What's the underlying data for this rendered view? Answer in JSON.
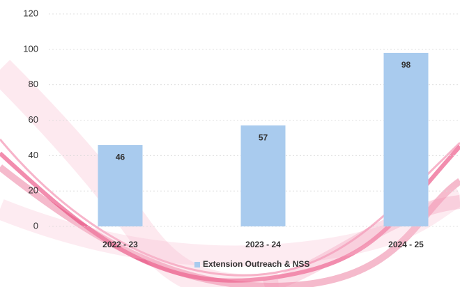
{
  "chart_data": {
    "type": "bar",
    "categories": [
      "2022 - 23",
      "2023 - 24",
      "2024 - 25"
    ],
    "series": [
      {
        "name": "Extension Outreach & NSS",
        "color": "#a9cbee",
        "values": [
          46,
          57,
          98
        ]
      }
    ],
    "ylim": [
      0,
      120
    ],
    "yticks": [
      0,
      20,
      40,
      60,
      80,
      100,
      120
    ],
    "grid": true,
    "legend": "bottom"
  }
}
